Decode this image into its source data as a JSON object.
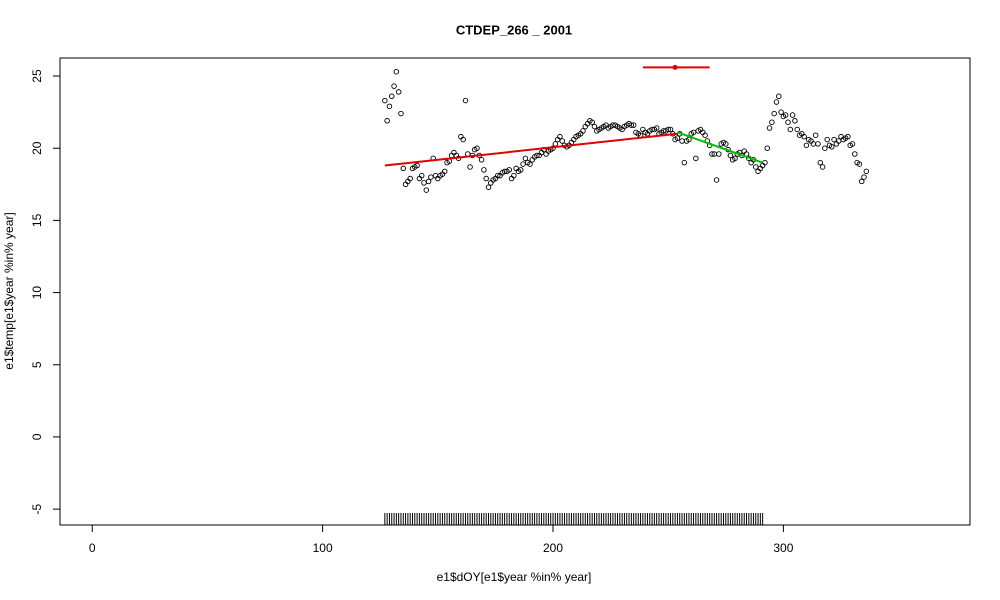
{
  "chart_data": {
    "type": "scatter",
    "title": "CTDEP_266 _ 2001",
    "x_label": "e1$dOY[e1$year %in% year]",
    "y_label": "e1$temp[e1$year %in% year]",
    "xlim": [
      -14,
      381
    ],
    "ylim": [
      -6.1,
      26.25
    ],
    "xticks": [
      0,
      100,
      200,
      300
    ],
    "yticks": [
      -5,
      0,
      5,
      10,
      15,
      20,
      25
    ],
    "point_color": "#000000",
    "x": [
      127,
      128,
      129,
      130,
      131,
      132,
      133,
      134,
      135,
      136,
      137,
      138,
      139,
      140,
      141,
      142,
      143,
      144,
      145,
      146,
      147,
      148,
      149,
      150,
      151,
      152,
      153,
      154,
      155,
      156,
      157,
      158,
      159,
      160,
      161,
      162,
      163,
      164,
      165,
      166,
      167,
      168,
      169,
      170,
      171,
      172,
      173,
      174,
      175,
      176,
      177,
      178,
      179,
      180,
      181,
      182,
      183,
      184,
      185,
      186,
      187,
      188,
      189,
      190,
      191,
      192,
      193,
      194,
      195,
      196,
      197,
      198,
      199,
      200,
      201,
      202,
      203,
      204,
      205,
      206,
      207,
      208,
      209,
      210,
      211,
      212,
      213,
      214,
      215,
      216,
      217,
      218,
      219,
      220,
      221,
      222,
      223,
      224,
      225,
      226,
      227,
      228,
      229,
      230,
      231,
      232,
      233,
      234,
      235,
      236,
      237,
      238,
      239,
      240,
      241,
      242,
      243,
      244,
      245,
      246,
      247,
      248,
      249,
      250,
      251,
      252,
      253,
      254,
      255,
      256,
      257,
      258,
      259,
      260,
      261,
      262,
      263,
      264,
      265,
      266,
      267,
      268,
      269,
      270,
      271,
      272,
      273,
      274,
      275,
      276,
      277,
      278,
      279,
      280,
      281,
      282,
      283,
      284,
      285,
      286,
      287,
      288,
      289,
      290,
      291,
      292,
      293,
      294,
      295,
      296,
      297,
      298,
      299,
      300,
      301,
      302,
      303,
      304,
      305,
      306,
      307,
      308,
      309,
      310,
      311,
      312,
      313,
      314,
      315,
      316,
      317,
      318,
      319,
      320,
      321,
      322,
      323,
      324,
      325,
      326,
      327,
      328,
      329,
      330,
      331,
      332,
      333,
      334,
      335,
      336
    ],
    "values": [
      23.3,
      21.9,
      22.9,
      23.6,
      24.3,
      25.3,
      23.9,
      22.4,
      18.6,
      17.5,
      17.7,
      17.9,
      18.6,
      18.7,
      18.8,
      17.9,
      18.1,
      17.6,
      17.1,
      17.7,
      18.0,
      19.3,
      18.1,
      17.9,
      18.1,
      18.2,
      18.4,
      19.0,
      19.1,
      19.5,
      19.7,
      19.5,
      19.3,
      20.8,
      20.6,
      23.3,
      19.6,
      18.7,
      19.5,
      19.9,
      20.0,
      19.5,
      19.2,
      18.5,
      17.9,
      17.3,
      17.6,
      17.8,
      17.9,
      18.1,
      18.1,
      18.3,
      18.4,
      18.4,
      18.5,
      17.9,
      18.1,
      18.6,
      18.4,
      18.5,
      18.9,
      19.3,
      19.0,
      18.9,
      19.2,
      19.4,
      19.5,
      19.5,
      19.7,
      19.9,
      19.6,
      19.8,
      19.9,
      20.0,
      20.3,
      20.6,
      20.8,
      20.5,
      20.2,
      20.1,
      20.2,
      20.4,
      20.6,
      20.8,
      20.9,
      21.0,
      21.2,
      21.5,
      21.7,
      21.9,
      21.8,
      21.5,
      21.2,
      21.3,
      21.4,
      21.5,
      21.6,
      21.4,
      21.5,
      21.6,
      21.6,
      21.5,
      21.4,
      21.3,
      21.5,
      21.6,
      21.7,
      21.6,
      21.6,
      21.1,
      21.0,
      20.9,
      21.3,
      21.1,
      21.0,
      21.2,
      21.3,
      21.3,
      21.4,
      21.0,
      21.1,
      21.2,
      21.2,
      21.3,
      21.3,
      21.0,
      20.6,
      20.7,
      21.0,
      20.5,
      19.0,
      20.5,
      20.6,
      21.0,
      21.1,
      19.3,
      21.2,
      21.3,
      21.1,
      20.9,
      20.5,
      20.2,
      19.6,
      19.6,
      17.8,
      19.6,
      20.3,
      20.4,
      20.3,
      19.9,
      19.5,
      19.2,
      19.3,
      19.6,
      19.7,
      19.5,
      19.8,
      19.6,
      19.3,
      19.0,
      19.2,
      18.7,
      18.4,
      18.6,
      18.8,
      19.0,
      20.0,
      21.4,
      21.8,
      22.4,
      23.2,
      23.6,
      22.5,
      22.2,
      22.3,
      21.8,
      21.3,
      22.3,
      21.9,
      21.3,
      20.9,
      21.0,
      20.8,
      20.2,
      20.6,
      20.5,
      20.3,
      20.9,
      20.3,
      19.0,
      18.7,
      20.0,
      20.6,
      20.2,
      20.1,
      20.6,
      20.3,
      20.5,
      20.8,
      20.6,
      20.7,
      20.8,
      20.2,
      20.3,
      19.6,
      19.0,
      18.9,
      17.7,
      18.0,
      18.4
    ],
    "fits": [
      {
        "x": [
          127,
          254
        ],
        "values": [
          18.8,
          21.0
        ],
        "color": "#e00000"
      },
      {
        "x": [
          254,
          291
        ],
        "values": [
          21.1,
          19.0
        ],
        "color": "#00c000"
      }
    ],
    "errorbar": {
      "x": 253,
      "value": 25.6,
      "xmin": 239,
      "xmax": 268,
      "color": "#e00000"
    }
  }
}
